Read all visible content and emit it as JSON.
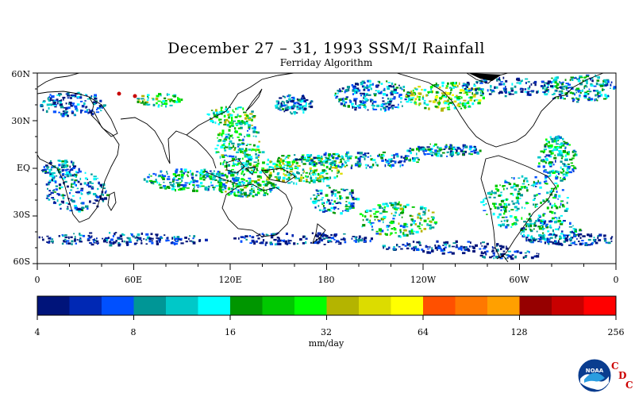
{
  "title": "December 27 – 31, 1993 SSM/I Rainfall",
  "subtitle": "Ferriday Algorithm",
  "lat_labels": [
    "60N",
    "30N",
    "EQ",
    "30S",
    "60S"
  ],
  "lon_labels": [
    "0",
    "60E",
    "120E",
    "180",
    "120W",
    "60W",
    "0"
  ],
  "colorbar": {
    "colors": [
      "#00147a",
      "#0028b4",
      "#0050ff",
      "#009696",
      "#00c8c8",
      "#00ffff",
      "#009600",
      "#00c800",
      "#00ff00",
      "#b4b400",
      "#dcdc00",
      "#ffff00",
      "#ff5000",
      "#ff7800",
      "#ffa000",
      "#960000",
      "#c80000",
      "#ff0000"
    ],
    "tick_labels": [
      "4",
      "8",
      "16",
      "32",
      "64",
      "128",
      "256"
    ],
    "units": "mm/day"
  },
  "logo": {
    "name": "NOAA",
    "letters": [
      "C",
      "D",
      "C"
    ]
  }
}
